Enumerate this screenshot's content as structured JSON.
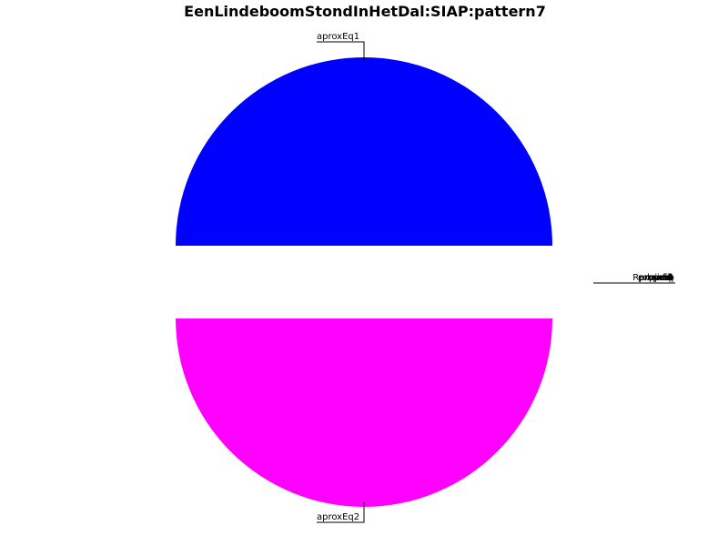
{
  "chart_data": {
    "type": "pie",
    "title": "EenLindeboomStondInHetDal:SIAP:pattern7",
    "slices": [
      {
        "label": "aproxEq1",
        "value": 50,
        "color": "#0000ff"
      },
      {
        "label": "aproxEq2",
        "value": 50,
        "color": "#ff00ff"
      }
    ],
    "overlapping_labels": [
      "imp",
      "bpreq",
      "rprfd",
      "expired",
      "prfd",
      "Rproved",
      "proved"
    ],
    "grid": false,
    "legend": "none"
  }
}
